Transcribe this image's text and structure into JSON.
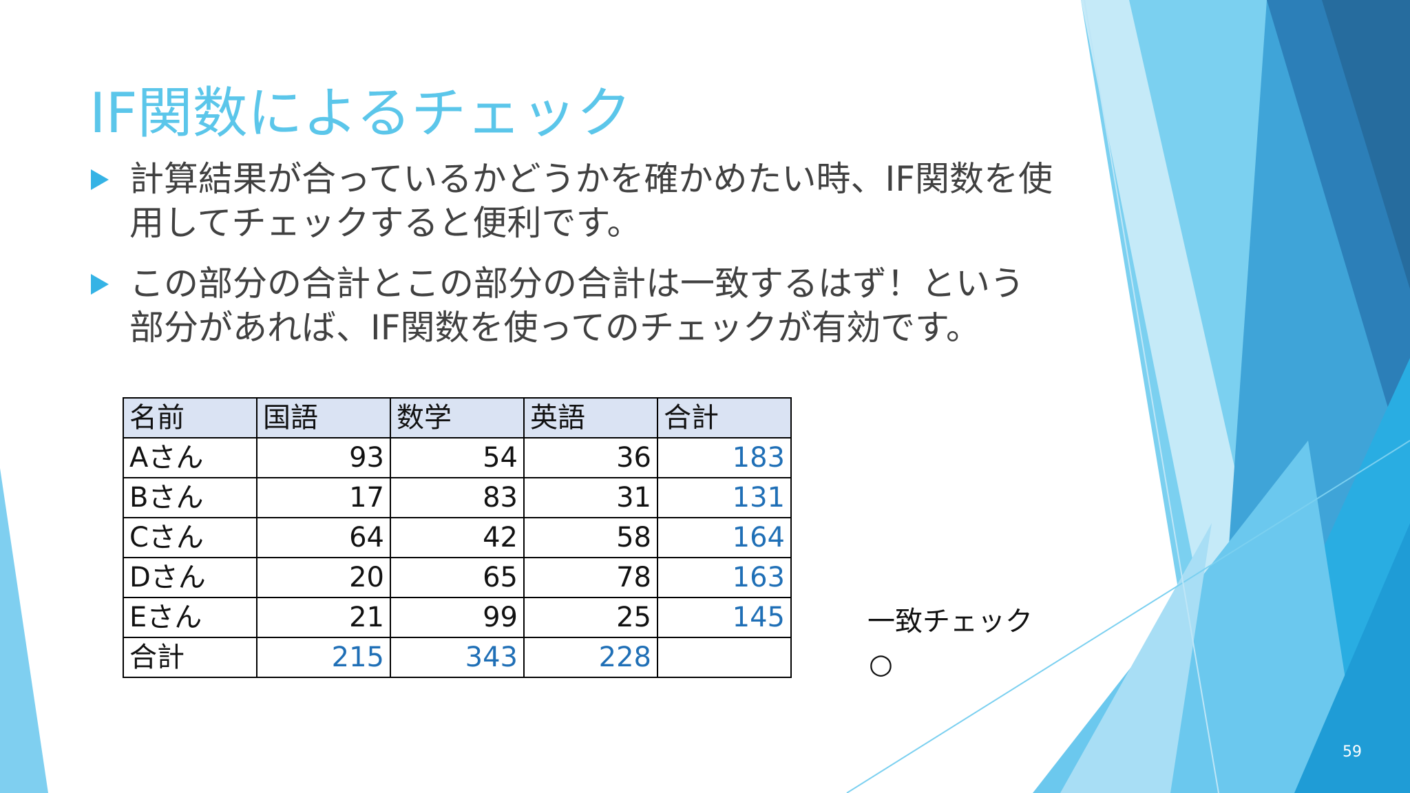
{
  "slide": {
    "title": "IF関数によるチェック",
    "bullets": [
      "計算結果が合っているかどうかを確かめたい時、IF関数を使用してチェックすると便利です。",
      "この部分の合計とこの部分の合計は一致するはず！という部分があれば、IF関数を使ってのチェックが有効です。"
    ],
    "page_number": "59"
  },
  "table": {
    "headers": [
      "名前",
      "国語",
      "数学",
      "英語",
      "合計"
    ],
    "rows": [
      [
        "Aさん",
        "93",
        "54",
        "36",
        "183"
      ],
      [
        "Bさん",
        "17",
        "83",
        "31",
        "131"
      ],
      [
        "Cさん",
        "64",
        "42",
        "58",
        "164"
      ],
      [
        "Dさん",
        "20",
        "65",
        "78",
        "163"
      ],
      [
        "Eさん",
        "21",
        "99",
        "25",
        "145"
      ],
      [
        "合計",
        "215",
        "343",
        "228",
        ""
      ]
    ]
  },
  "check": {
    "label": "一致チェック",
    "result": "○"
  },
  "colors": {
    "title": "#5bc6ea",
    "bullet_marker": "#35b3e5",
    "header_fill": "#dae3f3",
    "formula_text": "#1f6fb6"
  }
}
